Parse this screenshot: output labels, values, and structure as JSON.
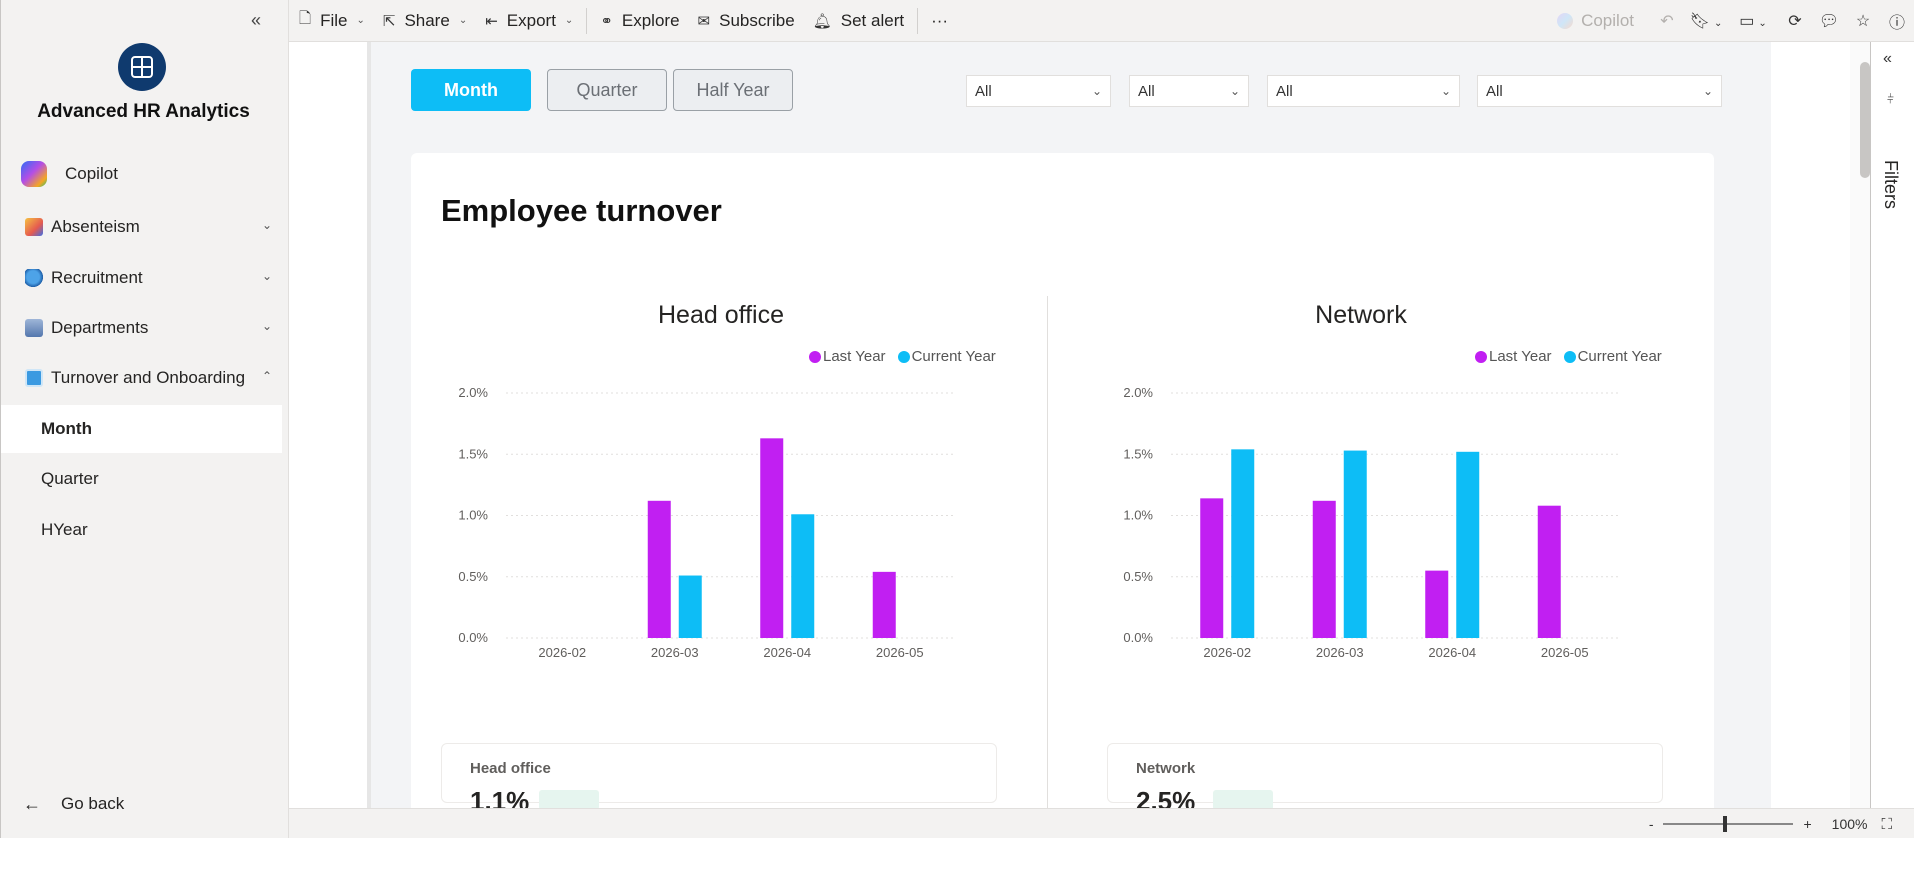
{
  "sidebar": {
    "app_name": "Advanced HR Analytics",
    "collapse_glyph": "«",
    "items": [
      {
        "label": "Copilot",
        "icon": "copilot-icon"
      },
      {
        "label": "Absenteism",
        "icon": "absenteism-icon",
        "chevron": "⌄"
      },
      {
        "label": "Recruitment",
        "icon": "recruitment-icon",
        "chevron": "⌄"
      },
      {
        "label": "Departments",
        "icon": "departments-icon",
        "chevron": "⌄"
      },
      {
        "label": "Turnover and Onboarding",
        "icon": "turnover-icon",
        "chevron": "⌃"
      }
    ],
    "sub_items": [
      {
        "label": "Month",
        "active": true
      },
      {
        "label": "Quarter",
        "active": false
      },
      {
        "label": "HYear",
        "active": false
      }
    ],
    "go_back": "Go back"
  },
  "toolbar": {
    "file": "File",
    "share": "Share",
    "export": "Export",
    "explore": "Explore",
    "subscribe": "Subscribe",
    "set_alert": "Set alert",
    "more": "···",
    "copilot": "Copilot"
  },
  "report": {
    "period_buttons": [
      "Month",
      "Quarter",
      "Half Year"
    ],
    "slicers": [
      "All",
      "All",
      "All",
      "All"
    ],
    "title": "Employee turnover",
    "legend": {
      "last_year": "Last Year",
      "current_year": "Current Year"
    },
    "kpi_head_office_label": "Head office",
    "kpi_network_label": "Network",
    "kpi_head_office_value": "1.1%",
    "kpi_network_value": "2.5%"
  },
  "filters_label": "Filters",
  "zoom": {
    "minus": "-",
    "plus": "+",
    "level": "100%"
  },
  "colors": {
    "last_year": "#c11ff2",
    "current_year": "#0dbdf6",
    "brand": "#0f3a6e",
    "accent": "#0dbdf6"
  },
  "chart_data": [
    {
      "type": "bar",
      "title": "Head office",
      "categories": [
        "2026-02",
        "2026-03",
        "2026-04",
        "2026-05"
      ],
      "series": [
        {
          "name": "Last Year",
          "values": [
            null,
            1.12,
            1.63,
            0.54
          ]
        },
        {
          "name": "Current Year",
          "values": [
            null,
            0.51,
            1.01,
            null
          ]
        }
      ],
      "ylim": [
        0,
        2.0
      ],
      "yticks": [
        "0.0%",
        "0.5%",
        "1.0%",
        "1.5%",
        "2.0%"
      ],
      "grid": true,
      "legend": "top-right"
    },
    {
      "type": "bar",
      "title": "Network",
      "categories": [
        "2026-02",
        "2026-03",
        "2026-04",
        "2026-05"
      ],
      "series": [
        {
          "name": "Last Year",
          "values": [
            1.14,
            1.12,
            0.55,
            1.08
          ]
        },
        {
          "name": "Current Year",
          "values": [
            1.54,
            1.53,
            1.52,
            null
          ]
        }
      ],
      "ylim": [
        0,
        2.0
      ],
      "yticks": [
        "0.0%",
        "0.5%",
        "1.0%",
        "1.5%",
        "2.0%"
      ],
      "grid": true,
      "legend": "top-right"
    }
  ]
}
